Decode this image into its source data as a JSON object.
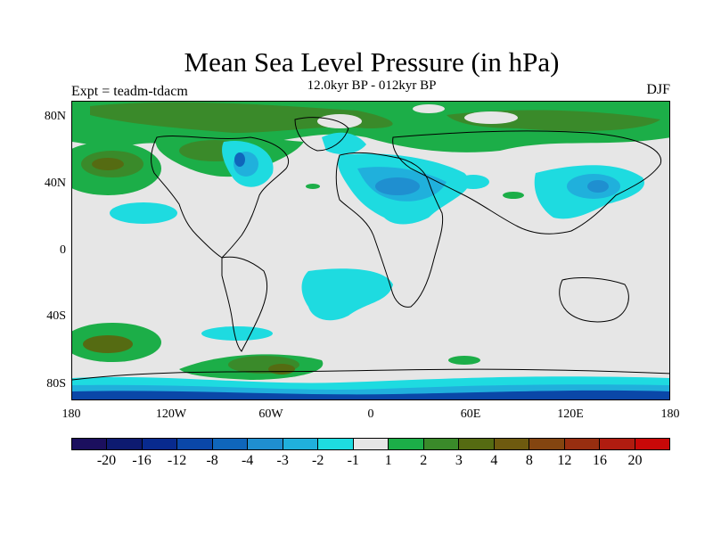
{
  "title": "Mean Sea Level Pressure (in hPa)",
  "subtitle": "12.0kyr BP - 012kyr BP",
  "left_label": "Expt = teadm-tdacm",
  "right_label": "DJF",
  "axes": {
    "y_ticks": [
      "80N",
      "40N",
      "0",
      "40S",
      "80S"
    ],
    "x_ticks": [
      "180",
      "120W",
      "60W",
      "0",
      "60E",
      "120E",
      "180"
    ]
  },
  "colorbar": {
    "colors": [
      "#1b0f5e",
      "#0d1a70",
      "#082a8e",
      "#0a47a8",
      "#0f66bb",
      "#1f8fd0",
      "#20b0dc",
      "#1edbe0",
      "#e6e6e6",
      "#1cae48",
      "#3a8a2a",
      "#556b12",
      "#6e5a0f",
      "#844510",
      "#982e10",
      "#b01c10",
      "#c80808"
    ],
    "labels": [
      "-20",
      "-16",
      "-12",
      "-8",
      "-4",
      "-3",
      "-2",
      "-1",
      "1",
      "2",
      "3",
      "4",
      "8",
      "12",
      "16",
      "20"
    ]
  }
}
